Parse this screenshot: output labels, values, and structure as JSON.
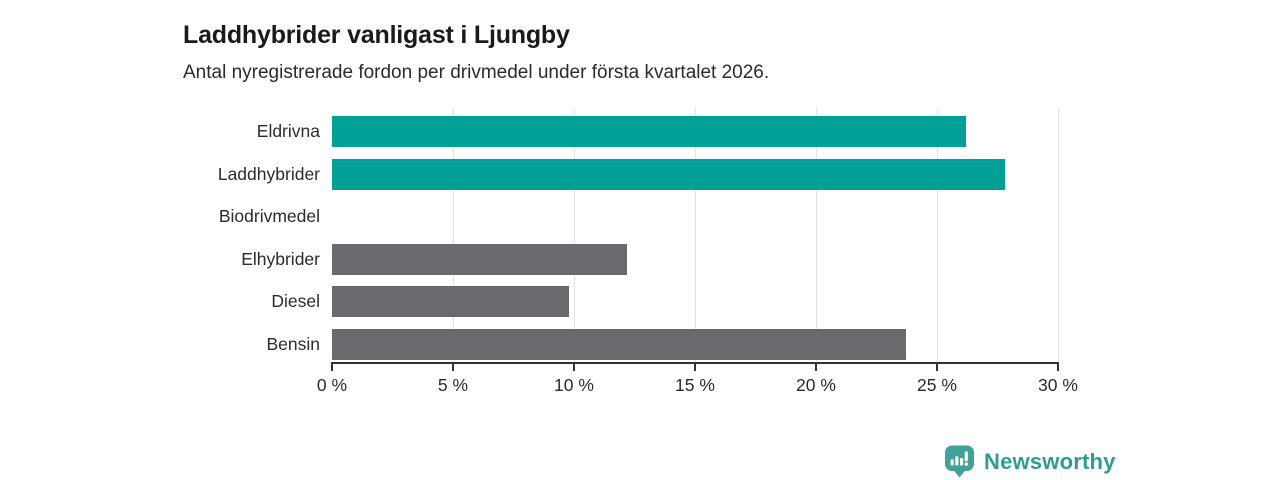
{
  "header": {
    "title": "Laddhybrider vanligast i Ljungby",
    "subtitle": "Antal nyregistrerade fordon per drivmedel under första kvartalet 2026."
  },
  "chart_data": {
    "type": "bar",
    "orientation": "horizontal",
    "title": "Laddhybrider vanligast i Ljungby",
    "subtitle": "Antal nyregistrerade fordon per drivmedel under första kvartalet 2026.",
    "categories": [
      "Eldrivna",
      "Laddhybrider",
      "Biodrivmedel",
      "Elhybrider",
      "Diesel",
      "Bensin"
    ],
    "values": [
      26.2,
      27.8,
      0,
      12.2,
      9.8,
      23.7
    ],
    "unit": "%",
    "xlim": [
      0,
      30
    ],
    "x_ticks": [
      0,
      5,
      10,
      15,
      20,
      25,
      30
    ],
    "x_tick_labels": [
      "0 %",
      "5 %",
      "10 %",
      "15 %",
      "20 %",
      "25 %",
      "30 %"
    ],
    "bar_colors": [
      "#00a097",
      "#00a097",
      "#6a6a6e",
      "#6a6a6e",
      "#6a6a6e",
      "#6a6a6e"
    ],
    "highlight_color": "#00a097",
    "default_color": "#6a6a6e",
    "grid": "vertical",
    "legend": "none"
  },
  "branding": {
    "logo_text": "Newsworthy",
    "logo_color": "#2f9c92",
    "logo_icon": "bar-chart-speech-pin-icon",
    "logo_icon_color": "#42a198"
  }
}
